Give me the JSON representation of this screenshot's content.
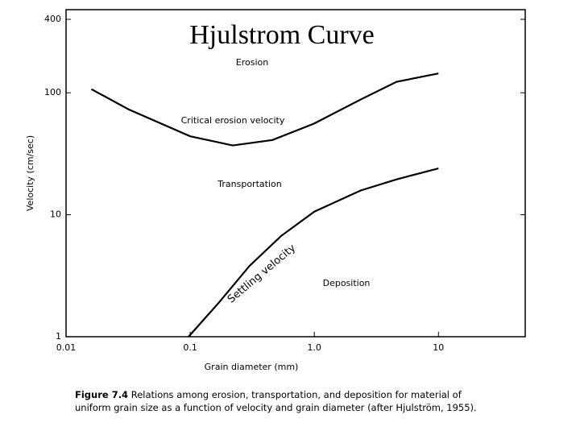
{
  "chart_data": {
    "type": "line",
    "title": "Hjulstrom Curve",
    "x_label": "Grain diameter (mm)",
    "y_label": "Velocity (cm/sec)",
    "log_x": true,
    "log_y": true,
    "grid": false,
    "color": "#000000",
    "xlim": [
      0.01,
      50
    ],
    "xticks": [
      0.01,
      0.1,
      {
        "value": 1,
        "label": "1.0"
      },
      10
    ],
    "ylim": [
      1,
      480
    ],
    "yticks": [
      1,
      10,
      100,
      400
    ],
    "series": [
      {
        "name": "Critical erosion velocity",
        "color": "#000000",
        "x": [
          0.016,
          0.032,
          0.1,
          0.22,
          0.46,
          1,
          2.36,
          4.6,
          10
        ],
        "values": [
          107,
          73,
          44,
          37,
          41,
          56,
          88,
          123,
          144
        ]
      },
      {
        "name": "Settling velocity",
        "color": "#000000",
        "x": [
          0.097,
          0.17,
          0.3,
          0.54,
          1,
          2.36,
          4.6,
          10
        ],
        "values": [
          1,
          1.9,
          3.8,
          6.7,
          10.6,
          15.8,
          19.5,
          24
        ]
      }
    ],
    "annotations": [
      "Erosion",
      "Transportation",
      "Deposition"
    ],
    "caption": {
      "label": "Figure 7.4",
      "text": "Relations among erosion, transportation, and deposition for material of uniform grain size as a function of velocity and grain diameter (after Hjulström, 1955)."
    }
  }
}
